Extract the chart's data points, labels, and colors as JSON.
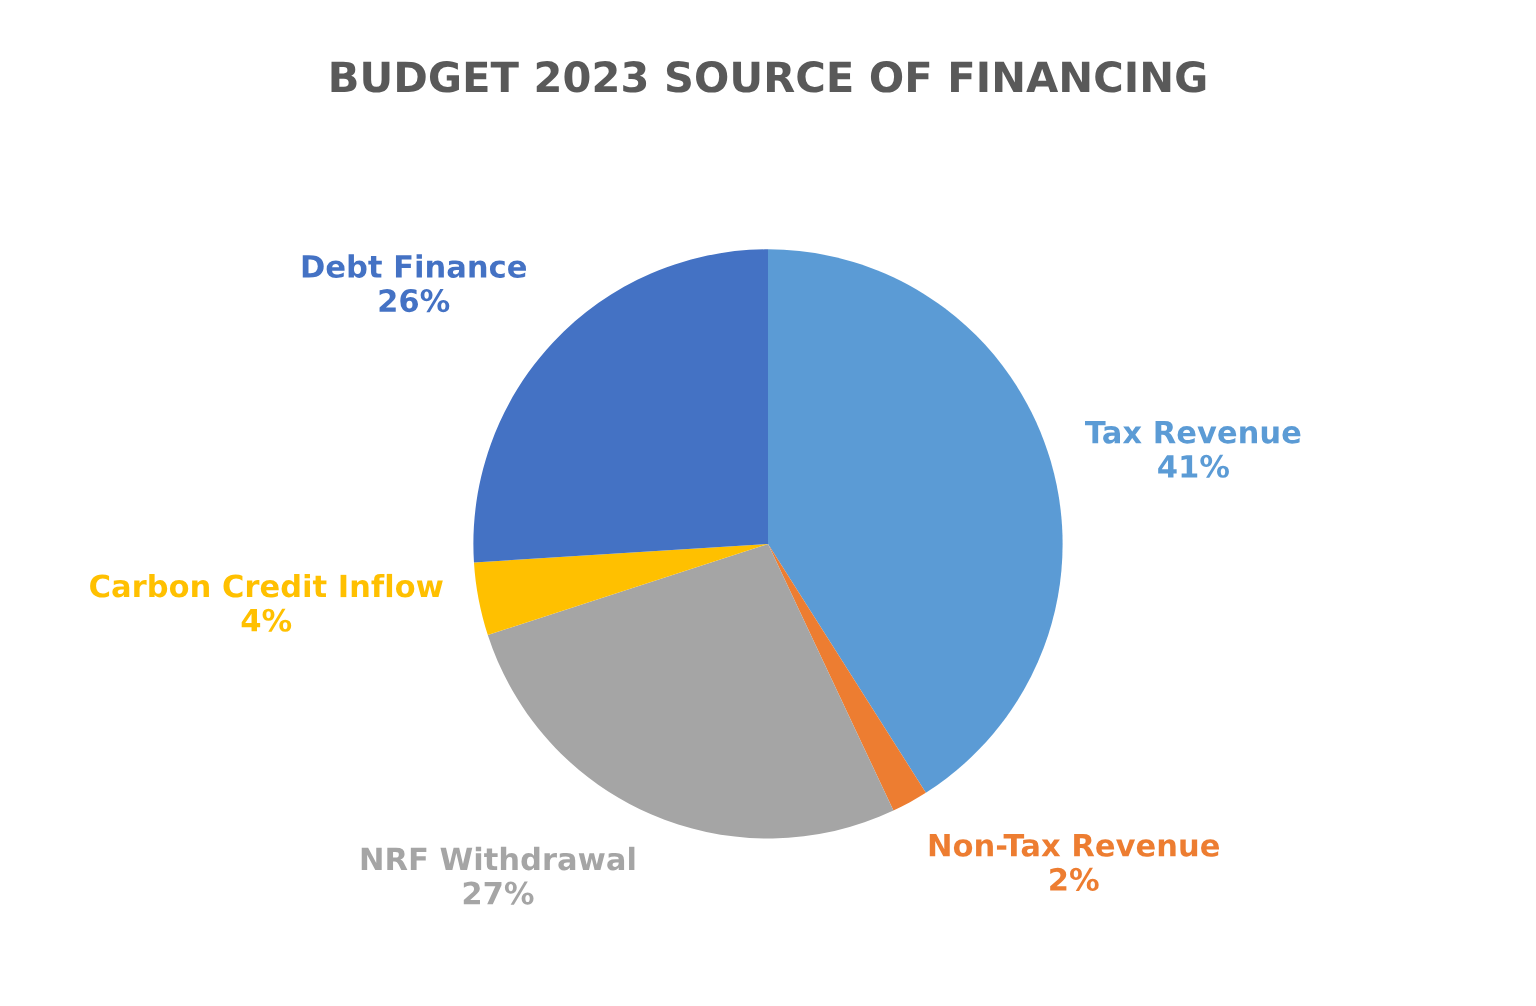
{
  "chart_data": {
    "type": "pie",
    "title": "BUDGET 2023 SOURCE OF FINANCING",
    "categories": [
      "Tax Revenue",
      "Non-Tax Revenue",
      "NRF Withdrawal",
      "Carbon Credit Inflow",
      "Debt Finance"
    ],
    "values": [
      41,
      2,
      27,
      4,
      26
    ],
    "value_labels": [
      "41%",
      "2%",
      "27%",
      "4%",
      "26%"
    ],
    "colors": [
      "#5b9bd5",
      "#ed7d31",
      "#a5a5a5",
      "#ffc000",
      "#4472c4"
    ],
    "legend": false
  }
}
